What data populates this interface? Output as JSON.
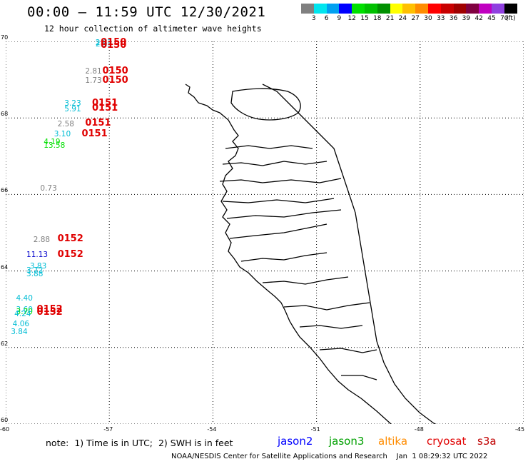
{
  "header": {
    "title": "00:00 – 11:59 UTC 12/30/2021",
    "subtitle": "12 hour collection of altimeter wave heights"
  },
  "colorbar": {
    "swatches": [
      "#808080",
      "#00e5ee",
      "#00a0f0",
      "#0000ff",
      "#00e000",
      "#00c000",
      "#009000",
      "#ffff00",
      "#ffc000",
      "#ff8c00",
      "#ff0000",
      "#c80000",
      "#a00000",
      "#800040",
      "#c000c0",
      "#9040e0",
      "#000000"
    ],
    "labels": [
      "3",
      "6",
      "9",
      "12",
      "15",
      "18",
      "21",
      "24",
      "27",
      "30",
      "33",
      "36",
      "39",
      "42",
      "45",
      "70",
      "(ft)"
    ]
  },
  "axes": {
    "lat_labels": [
      "70",
      "68",
      "66",
      "64",
      "62",
      "60"
    ],
    "lon_labels": [
      "-60",
      "-57",
      "-54",
      "-51",
      "-48",
      "-45"
    ]
  },
  "observations": [
    {
      "v": "2.83",
      "c": "#00bcd4",
      "lat": 69.96,
      "lon": -57.4
    },
    {
      "v": "2.35",
      "c": "#00bcd4",
      "lat": 69.92,
      "lon": -57.4
    },
    {
      "v": "2.81",
      "c": "#808080",
      "lat": 69.22,
      "lon": -57.7
    },
    {
      "v": "1.73",
      "c": "#808080",
      "lat": 68.98,
      "lon": -57.7
    },
    {
      "v": "3.23",
      "c": "#00bcd4",
      "lat": 68.38,
      "lon": -58.3
    },
    {
      "v": "5.91",
      "c": "#00bcd4",
      "lat": 68.23,
      "lon": -58.3
    },
    {
      "v": "2.58",
      "c": "#808080",
      "lat": 67.84,
      "lon": -58.5
    },
    {
      "v": "3.10",
      "c": "#00bcd4",
      "lat": 67.58,
      "lon": -58.6
    },
    {
      "v": "4.19",
      "c": "#00e000",
      "lat": 67.37,
      "lon": -58.9
    },
    {
      "v": "13.58",
      "c": "#00e000",
      "lat": 67.28,
      "lon": -58.9
    },
    {
      "v": "0.73",
      "c": "#808080",
      "lat": 66.15,
      "lon": -59.0
    },
    {
      "v": "2.88",
      "c": "#808080",
      "lat": 64.82,
      "lon": -59.2
    },
    {
      "v": "11.13",
      "c": "#0000cc",
      "lat": 64.42,
      "lon": -59.4
    },
    {
      "v": "3.83",
      "c": "#00bcd4",
      "lat": 64.12,
      "lon": -59.3
    },
    {
      "v": "3.72",
      "c": "#00bcd4",
      "lat": 64.02,
      "lon": -59.4
    },
    {
      "v": "3.88",
      "c": "#00bcd4",
      "lat": 63.92,
      "lon": -59.4
    },
    {
      "v": "4.40",
      "c": "#00bcd4",
      "lat": 63.28,
      "lon": -59.7
    },
    {
      "v": "3.60",
      "c": "#00bcd4",
      "lat": 62.98,
      "lon": -59.7
    },
    {
      "v": "3.70",
      "c": "#00e000",
      "lat": 62.93,
      "lon": -59.7
    },
    {
      "v": "4.24",
      "c": "#00bcd4",
      "lat": 62.88,
      "lon": -59.75
    },
    {
      "v": "4.06",
      "c": "#00bcd4",
      "lat": 62.62,
      "lon": -59.8
    },
    {
      "v": "3.84",
      "c": "#00bcd4",
      "lat": 62.4,
      "lon": -59.85
    }
  ],
  "passes": [
    {
      "t": "0150",
      "lat": 69.96,
      "lon": -57.25
    },
    {
      "t": "0150",
      "lat": 69.88,
      "lon": -57.25
    },
    {
      "t": "0150",
      "lat": 69.22,
      "lon": -57.2
    },
    {
      "t": "0150",
      "lat": 68.97,
      "lon": -57.2
    },
    {
      "t": "0151",
      "lat": 68.38,
      "lon": -57.5
    },
    {
      "t": "0151",
      "lat": 68.24,
      "lon": -57.5
    },
    {
      "t": "0151",
      "lat": 67.86,
      "lon": -57.7
    },
    {
      "t": "0151",
      "lat": 67.58,
      "lon": -57.8
    },
    {
      "t": "0152",
      "lat": 64.83,
      "lon": -58.5
    },
    {
      "t": "0152",
      "lat": 64.42,
      "lon": -58.5
    },
    {
      "t": "0152",
      "lat": 62.98,
      "lon": -59.1
    },
    {
      "t": "0152",
      "lat": 62.91,
      "lon": -59.1
    }
  ],
  "footer": {
    "note": "note:  1) Time is in UTC;  2) SWH is in feet",
    "satellites": [
      {
        "name": "jason2",
        "color": "#0000ff"
      },
      {
        "name": "jason3",
        "color": "#00a000"
      },
      {
        "name": "altika",
        "color": "#ff8c00"
      },
      {
        "name": "cryosat",
        "color": "#e00000"
      },
      {
        "name": "s3a",
        "color": "#c00000"
      }
    ],
    "credit": "NOAA/NESDIS Center for Satellite Applications and Research    Jan  1 08:29:32 UTC 2022"
  }
}
